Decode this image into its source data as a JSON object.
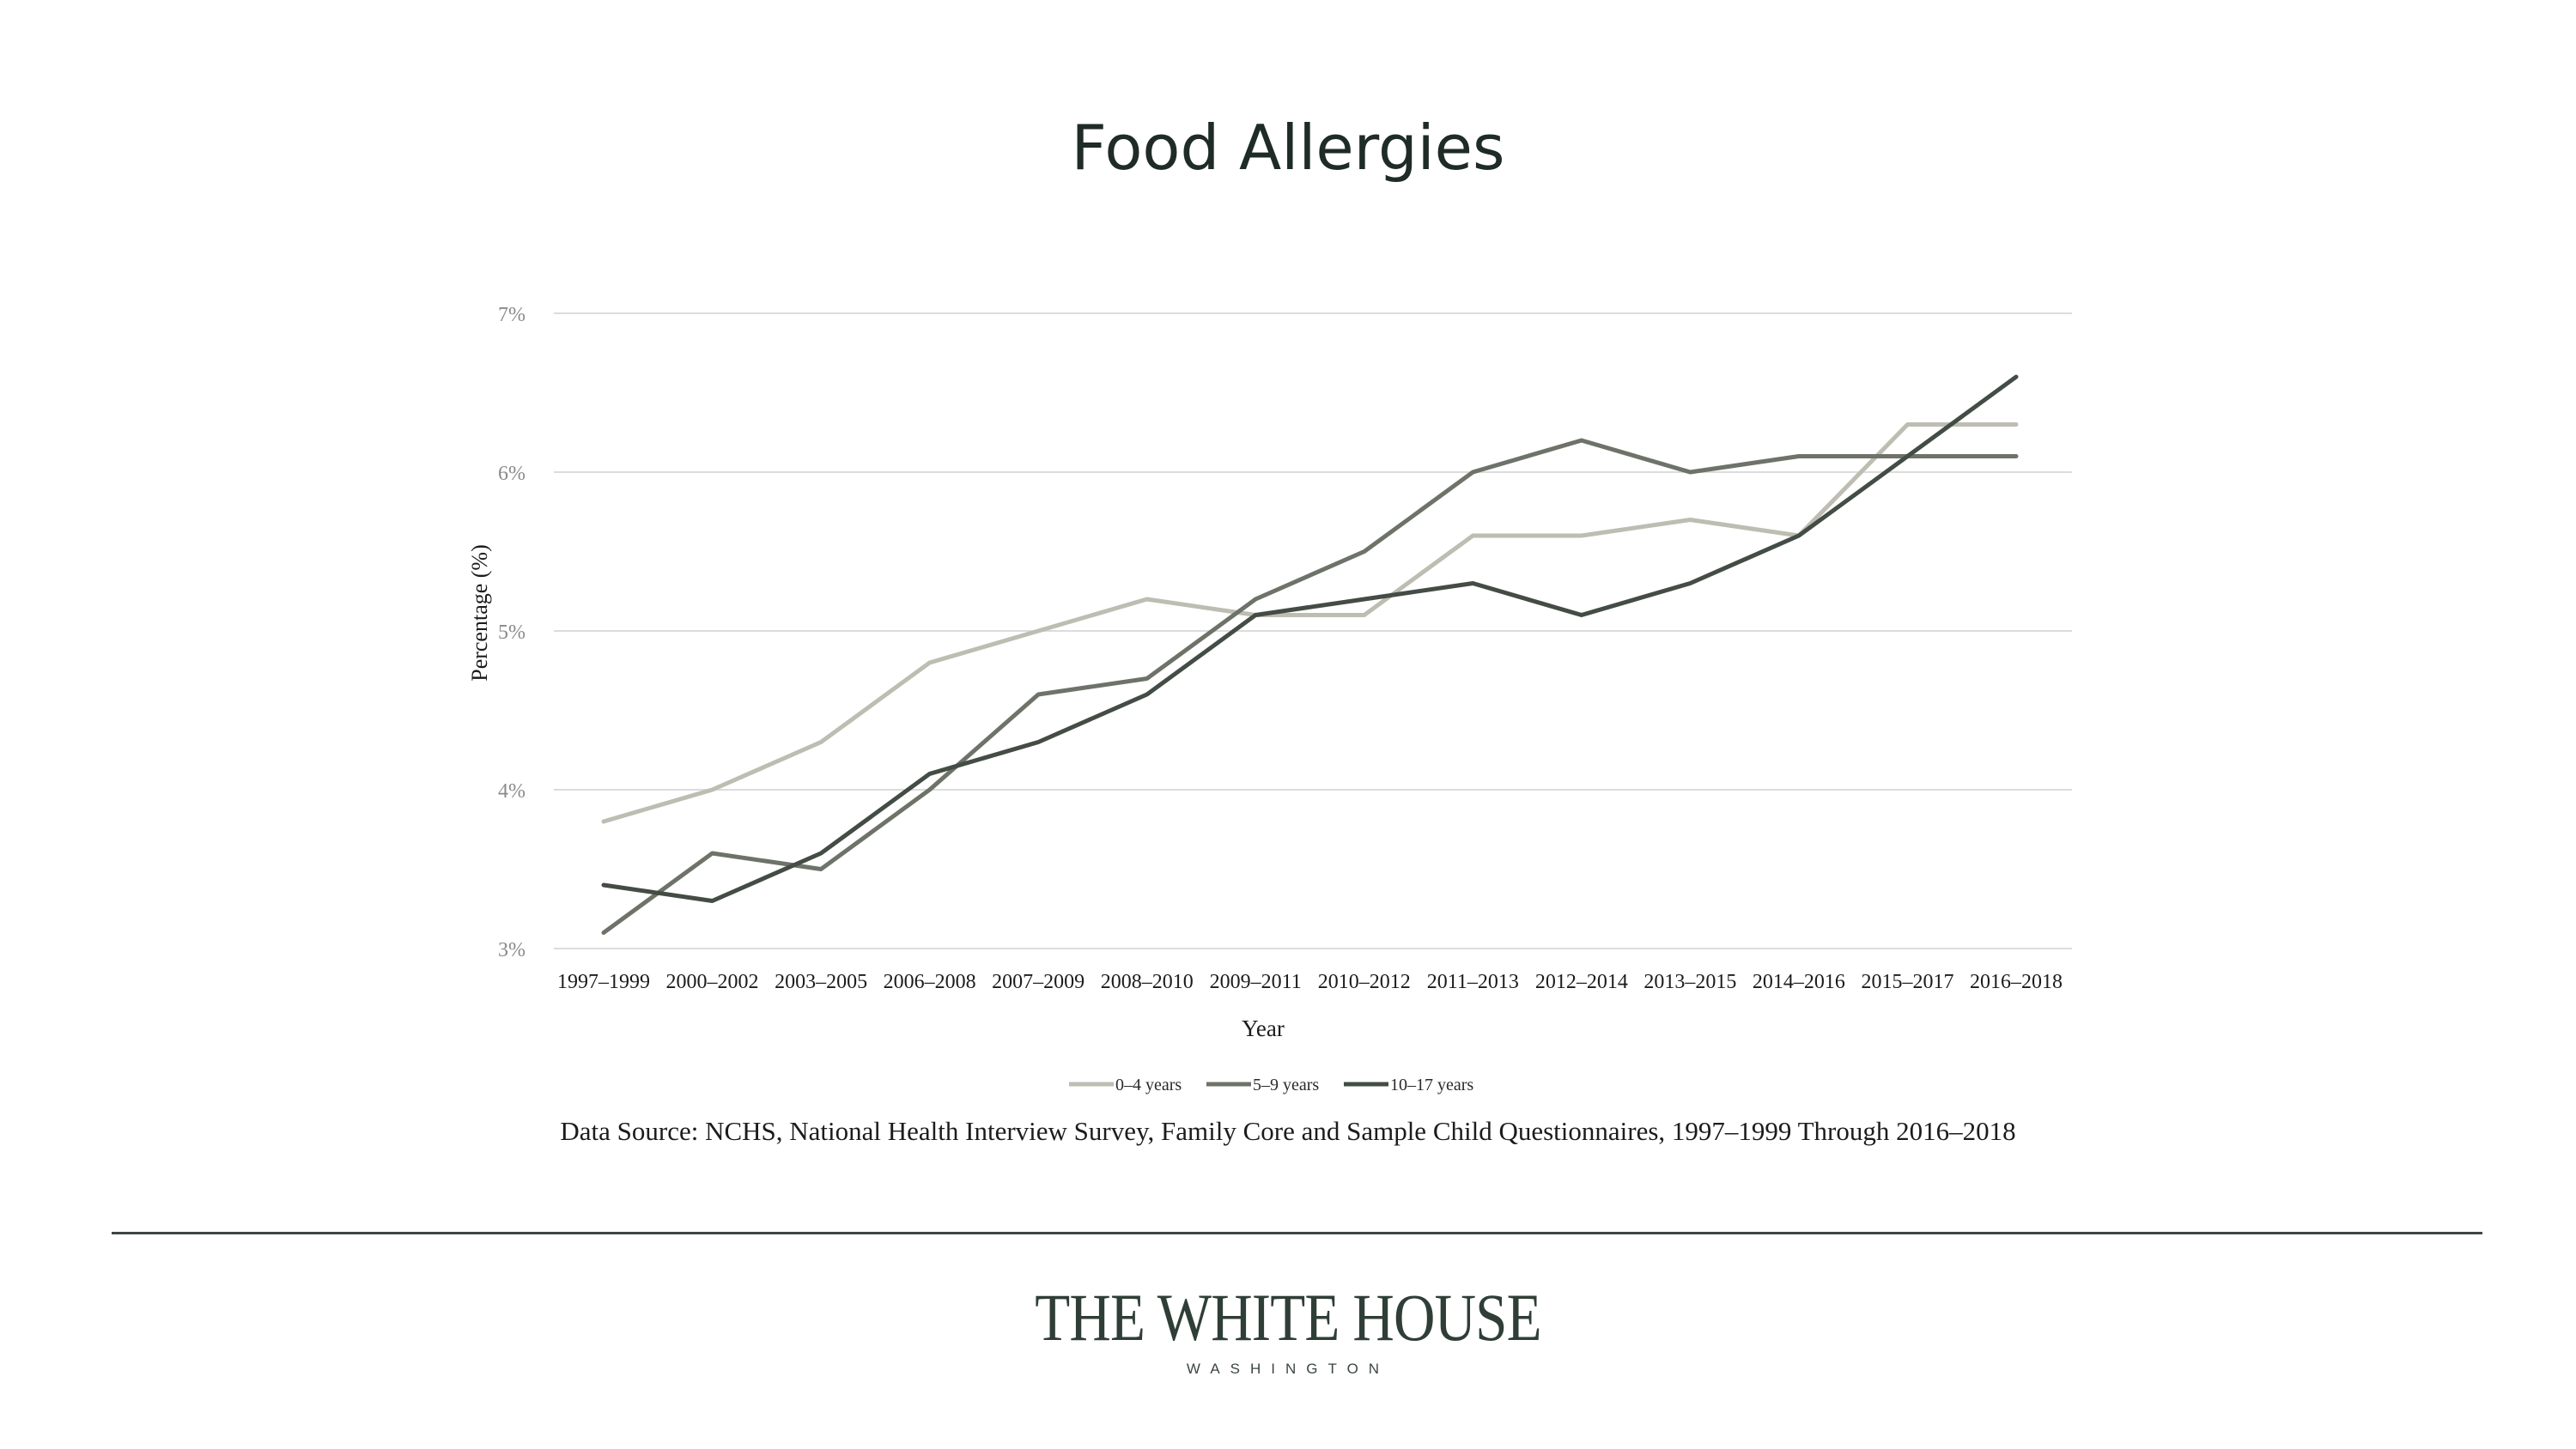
{
  "chart_data": {
    "type": "line",
    "title": "Food Allergies",
    "xlabel": "Year",
    "ylabel": "Percentage (%)",
    "x": [
      "1997–1999",
      "2000–2002",
      "2003–2005",
      "2006–2008",
      "2007–2009",
      "2008–2010",
      "2009–2011",
      "2010–2012",
      "2011–2013",
      "2012–2014",
      "2013–2015",
      "2014–2016",
      "2015–2017",
      "2016–2018"
    ],
    "y_ticks": [
      "3%",
      "4%",
      "5%",
      "6%",
      "7%"
    ],
    "ylim": [
      3,
      7
    ],
    "grid": true,
    "legend_position": "bottom",
    "series": [
      {
        "name": "0–4 years",
        "color": "#bdbdb2",
        "values": [
          3.8,
          4.0,
          4.3,
          4.8,
          5.0,
          5.2,
          5.1,
          5.1,
          5.6,
          5.6,
          5.7,
          5.6,
          6.3,
          6.3
        ]
      },
      {
        "name": "5–9 years",
        "color": "#6e7369",
        "values": [
          3.1,
          3.6,
          3.5,
          4.0,
          4.6,
          4.7,
          5.2,
          5.5,
          6.0,
          6.2,
          6.0,
          6.1,
          6.1,
          6.1
        ]
      },
      {
        "name": "10–17 years",
        "color": "#434c45",
        "values": [
          3.4,
          3.3,
          3.6,
          4.1,
          4.3,
          4.6,
          5.1,
          5.2,
          5.3,
          5.1,
          5.3,
          5.6,
          6.1,
          6.6
        ]
      }
    ]
  },
  "source_text": "Data Source: NCHS, National Health Interview Survey, Family Core and Sample Child Questionnaires, 1997–1999 Through 2016–2018",
  "logo": {
    "name": "THE WHITE HOUSE",
    "sub": "WASHINGTON"
  },
  "colors": {
    "title": "#1f2b26",
    "gridline": "#dcdcdc",
    "rule": "#3c4642"
  }
}
